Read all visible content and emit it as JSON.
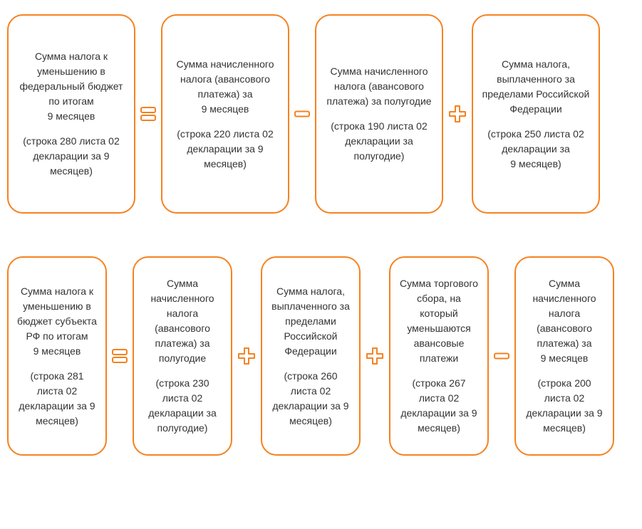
{
  "colors": {
    "border": "#f58220",
    "operator": "#f58220",
    "text": "#333333",
    "background": "#ffffff"
  },
  "layout": {
    "type": "flowchart-formula",
    "box_border_radius": 22,
    "box_border_width": 2,
    "row1_box_width": 180,
    "row2_box_width": 140,
    "box_min_height": 280,
    "font_size": 14
  },
  "row1": {
    "boxes": [
      {
        "main": "Сумма налога к уменьшению в федеральный бюджет по итогам\n9 месяцев",
        "sub": "(строка 280 листа 02 декларации за 9 месяцев)"
      },
      {
        "main": "Сумма начисленного налога (авансового платежа) за\n9 месяцев",
        "sub": "(строка 220 листа 02 декларации за 9 месяцев)"
      },
      {
        "main": "Сумма начисленного налога (авансового платежа) за полугодие",
        "sub": "(строка 190 листа 02 декларации за полугодие)"
      },
      {
        "main": "Сумма налога, выплаченного за пределами Российской Федерации",
        "sub": "(строка 250 листа 02 декларации за\n9 месяцев)"
      }
    ],
    "operators": [
      "equals",
      "minus",
      "plus"
    ]
  },
  "row2": {
    "boxes": [
      {
        "main": "Сумма налога к уменьшению в  бюджет субъекта РФ по итогам\n9 месяцев",
        "sub": "(строка 281 листа 02 декларации за 9 месяцев)"
      },
      {
        "main": "Сумма начисленного налога (авансового платежа) за полугодие",
        "sub": "(строка 230 листа 02 декларации за полугодие)"
      },
      {
        "main": "Сумма налога, выплаченного за пределами Российской Федерации",
        "sub": "(строка 260 листа 02 декларации за 9 месяцев)"
      },
      {
        "main": "Сумма торгового сбора, на который уменьшаются авансовые платежи",
        "sub": "(строка 267 листа 02 декларации за 9 месяцев)"
      },
      {
        "main": "Сумма начисленного налога (авансового платежа) за\n9 месяцев",
        "sub": "(строка 200 листа 02 декларации за 9 месяцев)"
      }
    ],
    "operators": [
      "equals",
      "plus",
      "plus",
      "minus"
    ]
  }
}
